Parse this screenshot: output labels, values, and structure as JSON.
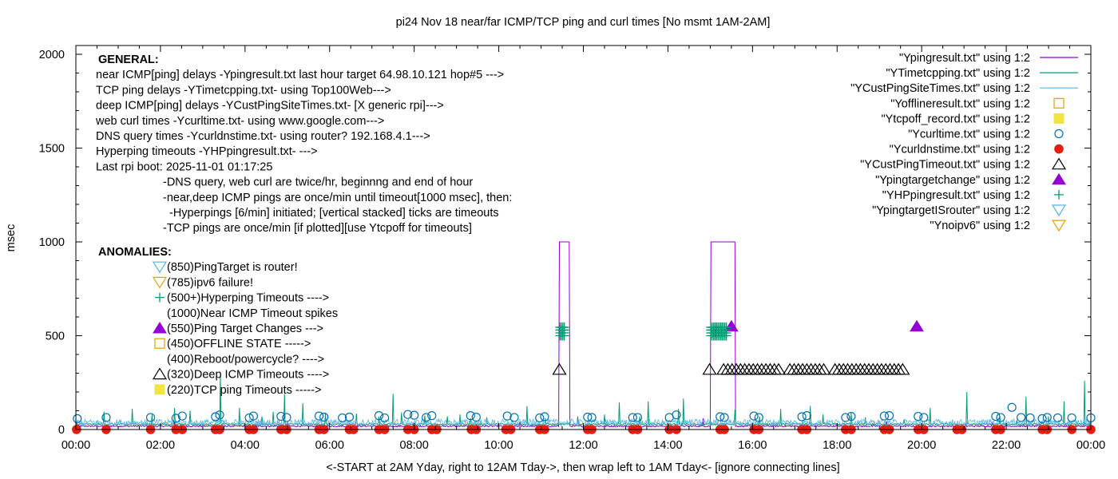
{
  "chart_data": {
    "type": "line",
    "title": "pi24 Nov 18  near/far ICMP/TCP ping and curl times [No msmt 1AM-2AM]",
    "xlabel": "<-START at 2AM Yday, right to 12AM Tday->, then wrap left to 1AM Tday<- [ignore connecting lines]",
    "ylabel": "msec",
    "xlim": [
      0,
      1440
    ],
    "ylim": [
      0,
      2100
    ],
    "x_ticks": [
      {
        "v": 0,
        "label": "00:00"
      },
      {
        "v": 120,
        "label": "02:00"
      },
      {
        "v": 240,
        "label": "04:00"
      },
      {
        "v": 360,
        "label": "06:00"
      },
      {
        "v": 480,
        "label": "08:00"
      },
      {
        "v": 600,
        "label": "10:00"
      },
      {
        "v": 720,
        "label": "12:00"
      },
      {
        "v": 840,
        "label": "14:00"
      },
      {
        "v": 960,
        "label": "16:00"
      },
      {
        "v": 1080,
        "label": "18:00"
      },
      {
        "v": 1200,
        "label": "20:00"
      },
      {
        "v": 1320,
        "label": "22:00"
      },
      {
        "v": 1440,
        "label": "00:00"
      }
    ],
    "y_ticks": [
      {
        "v": 0,
        "label": "0"
      },
      {
        "v": 500,
        "label": "500"
      },
      {
        "v": 1000,
        "label": "1000"
      },
      {
        "v": 1500,
        "label": "1500"
      },
      {
        "v": 2000,
        "label": "2000"
      }
    ],
    "grid": false,
    "legend_position": "top-right",
    "legend": [
      {
        "label": "\"Ypingresult.txt\" using 1:2",
        "style": "line",
        "color": "#9400d3"
      },
      {
        "label": "\"YTimetcpping.txt\" using 1:2",
        "style": "line",
        "color": "#009e73"
      },
      {
        "label": "\"YCustPingSiteTimes.txt\" using 1:2",
        "style": "line",
        "color": "#56b4e9"
      },
      {
        "label": "\"Yofflineresult.txt\" using 1:2",
        "style": "open-square",
        "color": "#e69f00"
      },
      {
        "label": "\"Ytcpoff_record.txt\" using 1:2",
        "style": "filled-square",
        "color": "#f0e442"
      },
      {
        "label": "\"Ycurltime.txt\" using 1:2",
        "style": "open-circle",
        "color": "#0072b2"
      },
      {
        "label": "\"Ycurldnstime.txt\" using 1:2",
        "style": "filled-circle",
        "color": "#e51e10"
      },
      {
        "label": "\"YCustPingTimeout.txt\" using 1:2",
        "style": "open-triangle",
        "color": "#000000"
      },
      {
        "label": "\"Ypingtargetchange\" using 1:2",
        "style": "filled-triangle",
        "color": "#9400d3"
      },
      {
        "label": "\"YHPpingresult.txt\" using 1:2",
        "style": "plus",
        "color": "#009e73"
      },
      {
        "label": "\"YpingtargetISrouter\" using 1:2",
        "style": "open-down-triangle",
        "color": "#56b4e9"
      },
      {
        "label": "\"Ynoipv6\" using 1:2",
        "style": "open-down-triangle",
        "color": "#e69f00"
      }
    ],
    "annotations": {
      "general": [
        {
          "text": "GENERAL:",
          "bold": true,
          "indent": 0
        },
        {
          "text": "near ICMP[ping] delays -Ypingresult.txt last hour target 64.98.10.121 hop#5 --->",
          "bold": false,
          "indent": 0
        },
        {
          "text": "TCP ping delays -YTimetcpping.txt- using Top100Web--->",
          "bold": false,
          "indent": 0
        },
        {
          "text": "deep ICMP[ping] delays -YCustPingSiteTimes.txt- [X generic rpi]--->",
          "bold": false,
          "indent": 0
        },
        {
          "text": "web curl times -Ycurltime.txt- using www.google.com--->",
          "bold": false,
          "indent": 0
        },
        {
          "text": "DNS query times -Ycurldnstime.txt- using router? 192.168.4.1--->",
          "bold": false,
          "indent": 0
        },
        {
          "text": "Hyperping timeouts -YHPpingresult.txt- --->",
          "bold": false,
          "indent": 0
        },
        {
          "text": "Last rpi boot: 2025-11-01 01:17:25",
          "bold": false,
          "indent": 0
        },
        {
          "text": "-DNS query, web curl are twice/hr, beginnng and end of hour",
          "bold": false,
          "indent": 1
        },
        {
          "text": "-near,deep ICMP pings are once/min until timeout[1000 msec], then:",
          "bold": false,
          "indent": 1
        },
        {
          "text": "-Hyperpings [6/min] initiated; [vertical stacked] ticks are timeouts",
          "bold": false,
          "indent": 2
        },
        {
          "text": "-TCP pings are once/min [if plotted][use Ytcpoff for timeouts]",
          "bold": false,
          "indent": 1
        }
      ],
      "anomalies_title": "ANOMALIES:",
      "anomalies": [
        {
          "text": "(850)PingTarget is router!",
          "marker": "open-down-triangle",
          "color": "#56b4e9"
        },
        {
          "text": "(785)ipv6 failure!",
          "marker": "open-down-triangle",
          "color": "#e69f00"
        },
        {
          "text": "(500+)Hyperping Timeouts ---->",
          "marker": "plus",
          "color": "#009e73"
        },
        {
          "text": "(1000)Near ICMP Timeout spikes",
          "marker": "none",
          "color": "#000000"
        },
        {
          "text": "(550)Ping Target Changes --->",
          "marker": "filled-triangle",
          "color": "#9400d3"
        },
        {
          "text": "(450)OFFLINE STATE ----->",
          "marker": "open-square",
          "color": "#e69f00"
        },
        {
          "text": "(400)Reboot/powercycle? ---->",
          "marker": "none",
          "color": "#000000"
        },
        {
          "text": "(320)Deep ICMP Timeouts ---->",
          "marker": "open-triangle",
          "color": "#000000"
        },
        {
          "text": "(220)TCP ping Timeouts ----->",
          "marker": "filled-square",
          "color": "#f0e442"
        }
      ]
    },
    "series": [
      {
        "name": "\"Ypingresult.txt\" using 1:2",
        "kind": "line",
        "color": "#9400d3",
        "baseline": 18,
        "spikes": [
          [
            1,
            40
          ],
          [
            140,
            45
          ],
          [
            300,
            38
          ],
          [
            630,
            42
          ],
          [
            890,
            60
          ],
          [
            1150,
            45
          ],
          [
            1300,
            40
          ]
        ],
        "timeout_blocks": [
          [
            686,
            700
          ],
          [
            901,
            935
          ]
        ],
        "timeout_value": 1000
      },
      {
        "name": "\"YTimetcpping.txt\" using 1:2",
        "kind": "line",
        "color": "#009e73",
        "baseline": 28,
        "spikes": [
          [
            40,
            95
          ],
          [
            80,
            110
          ],
          [
            108,
            80
          ],
          [
            140,
            115
          ],
          [
            162,
            100
          ],
          [
            205,
            290
          ],
          [
            232,
            115
          ],
          [
            264,
            70
          ],
          [
            280,
            95
          ],
          [
            296,
            190
          ],
          [
            322,
            140
          ],
          [
            354,
            90
          ],
          [
            398,
            85
          ],
          [
            430,
            70
          ],
          [
            450,
            190
          ],
          [
            462,
            90
          ],
          [
            495,
            75
          ],
          [
            527,
            70
          ],
          [
            545,
            80
          ],
          [
            560,
            60
          ],
          [
            583,
            65
          ],
          [
            640,
            125
          ],
          [
            666,
            60
          ],
          [
            712,
            70
          ],
          [
            750,
            80
          ],
          [
            771,
            145
          ],
          [
            800,
            70
          ],
          [
            812,
            150
          ],
          [
            855,
            110
          ],
          [
            862,
            165
          ],
          [
            900,
            50
          ],
          [
            935,
            105
          ],
          [
            970,
            70
          ],
          [
            1000,
            110
          ],
          [
            1042,
            125
          ],
          [
            1060,
            80
          ],
          [
            1100,
            90
          ],
          [
            1120,
            65
          ],
          [
            1175,
            55
          ],
          [
            1212,
            115
          ],
          [
            1264,
            200
          ],
          [
            1311,
            70
          ],
          [
            1335,
            50
          ],
          [
            1348,
            175
          ],
          [
            1380,
            70
          ],
          [
            1402,
            150
          ],
          [
            1431,
            260
          ]
        ]
      },
      {
        "name": "\"YCustPingSiteTimes.txt\" using 1:2",
        "kind": "noise",
        "color": "#56b4e9",
        "min": 20,
        "max": 55
      },
      {
        "name": "\"Ycurltime.txt\" using 1:2",
        "kind": "points",
        "marker": "open-circle",
        "color": "#0072b2",
        "points": [
          [
            2,
            58
          ],
          [
            43,
            64
          ],
          [
            106,
            64
          ],
          [
            142,
            60
          ],
          [
            151,
            72
          ],
          [
            198,
            68
          ],
          [
            204,
            78
          ],
          [
            246,
            62
          ],
          [
            252,
            72
          ],
          [
            291,
            70
          ],
          [
            299,
            64
          ],
          [
            345,
            72
          ],
          [
            352,
            66
          ],
          [
            378,
            62
          ],
          [
            388,
            66
          ],
          [
            430,
            74
          ],
          [
            438,
            62
          ],
          [
            471,
            80
          ],
          [
            480,
            76
          ],
          [
            497,
            64
          ],
          [
            505,
            74
          ],
          [
            560,
            74
          ],
          [
            568,
            66
          ],
          [
            612,
            72
          ],
          [
            622,
            64
          ],
          [
            658,
            62
          ],
          [
            665,
            68
          ],
          [
            726,
            66
          ],
          [
            732,
            64
          ],
          [
            790,
            64
          ],
          [
            797,
            64
          ],
          [
            842,
            64
          ],
          [
            852,
            78
          ],
          [
            914,
            68
          ],
          [
            920,
            64
          ],
          [
            962,
            72
          ],
          [
            969,
            64
          ],
          [
            1030,
            68
          ],
          [
            1037,
            74
          ],
          [
            1092,
            64
          ],
          [
            1100,
            70
          ],
          [
            1147,
            72
          ],
          [
            1154,
            74
          ],
          [
            1195,
            70
          ],
          [
            1203,
            64
          ],
          [
            1305,
            70
          ],
          [
            1312,
            64
          ],
          [
            1371,
            58
          ],
          [
            1378,
            64
          ],
          [
            1413,
            62
          ],
          [
            1440,
            62
          ],
          [
            1328,
            118
          ],
          [
            1341,
            64
          ],
          [
            1354,
            62
          ],
          [
            1393,
            62
          ]
        ]
      },
      {
        "name": "\"Ycurldnstime.txt\" using 1:2",
        "kind": "points",
        "marker": "filled-circle",
        "color": "#e51e10",
        "points": [
          [
            1,
            0
          ],
          [
            43,
            0
          ],
          [
            106,
            0
          ],
          [
            142,
            0
          ],
          [
            151,
            0
          ],
          [
            198,
            0
          ],
          [
            204,
            0
          ],
          [
            246,
            0
          ],
          [
            252,
            0
          ],
          [
            291,
            0
          ],
          [
            299,
            0
          ],
          [
            345,
            0
          ],
          [
            352,
            0
          ],
          [
            388,
            0
          ],
          [
            394,
            0
          ],
          [
            430,
            0
          ],
          [
            438,
            0
          ],
          [
            471,
            0
          ],
          [
            480,
            0
          ],
          [
            505,
            0
          ],
          [
            512,
            0
          ],
          [
            561,
            0
          ],
          [
            568,
            0
          ],
          [
            610,
            0
          ],
          [
            617,
            0
          ],
          [
            658,
            0
          ],
          [
            665,
            0
          ],
          [
            726,
            0
          ],
          [
            732,
            0
          ],
          [
            790,
            0
          ],
          [
            797,
            0
          ],
          [
            842,
            0
          ],
          [
            852,
            0
          ],
          [
            914,
            0
          ],
          [
            920,
            0
          ],
          [
            962,
            0
          ],
          [
            969,
            0
          ],
          [
            1030,
            0
          ],
          [
            1037,
            0
          ],
          [
            1092,
            0
          ],
          [
            1100,
            0
          ],
          [
            1147,
            0
          ],
          [
            1154,
            0
          ],
          [
            1195,
            0
          ],
          [
            1203,
            0
          ],
          [
            1250,
            0
          ],
          [
            1257,
            0
          ],
          [
            1305,
            0
          ],
          [
            1312,
            0
          ],
          [
            1371,
            0
          ],
          [
            1378,
            0
          ],
          [
            1413,
            0
          ],
          [
            1440,
            0
          ]
        ]
      },
      {
        "name": "\"YCustPingTimeout.txt\" using 1:2",
        "kind": "points",
        "marker": "open-triangle",
        "color": "#000000",
        "y": 320,
        "x_points": [
          686,
          899,
          919,
          925,
          931,
          937,
          943,
          949,
          955,
          961,
          967,
          973,
          979,
          985,
          991,
          997,
          1013,
          1019,
          1025,
          1031,
          1037,
          1043,
          1049,
          1055,
          1061,
          1077,
          1083,
          1089,
          1095,
          1101,
          1107,
          1113,
          1119,
          1125,
          1131,
          1137,
          1143,
          1149,
          1155,
          1161,
          1167,
          1173
        ]
      },
      {
        "name": "\"Ypingtargetchange\" using 1:2",
        "kind": "points",
        "marker": "filled-triangle",
        "color": "#9400d3",
        "points": [
          [
            930,
            550
          ],
          [
            1193,
            550
          ]
        ]
      },
      {
        "name": "\"YHPpingresult.txt\" using 1:2",
        "kind": "points",
        "marker": "plus",
        "color": "#009e73",
        "ys": [
          500,
          515,
          530,
          545
        ],
        "x_points": [
          687,
          689,
          691,
          693,
          901,
          903,
          905,
          907,
          909,
          911,
          913,
          915,
          917,
          919,
          921,
          923
        ]
      }
    ]
  }
}
